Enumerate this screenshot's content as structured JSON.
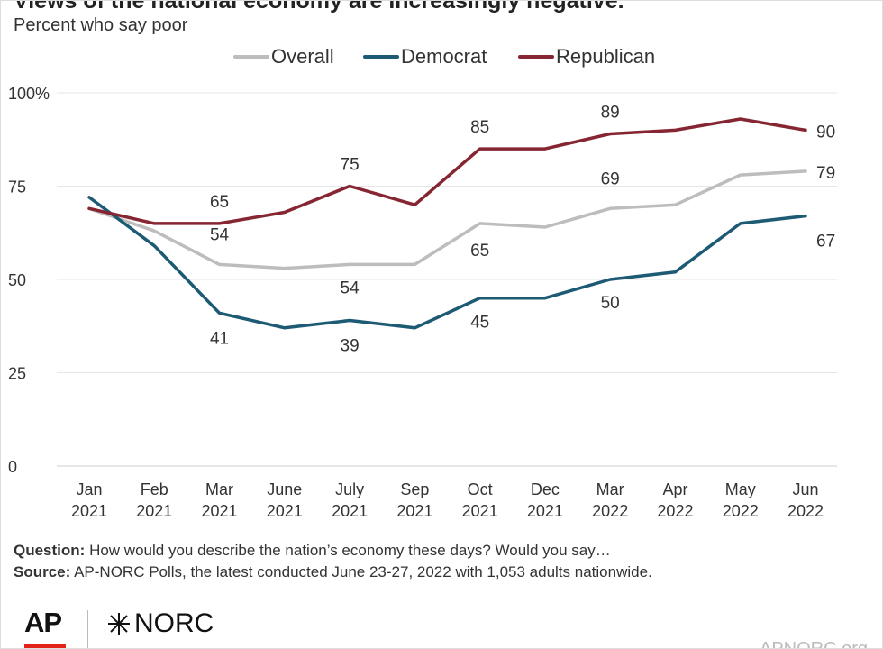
{
  "header": {
    "title": "Views of the national economy are increasingly negative.",
    "subtitle": "Percent who say poor"
  },
  "chart_data": {
    "type": "line",
    "title": "Views of the national economy are increasingly negative.",
    "subtitle": "Percent who say poor",
    "categories": [
      "Jan 2021",
      "Feb 2021",
      "Mar 2021",
      "June 2021",
      "July 2021",
      "Sep 2021",
      "Oct 2021",
      "Dec 2021",
      "Mar 2022",
      "Apr 2022",
      "May 2022",
      "Jun 2022"
    ],
    "category_lines": [
      [
        "Jan",
        "2021"
      ],
      [
        "Feb",
        "2021"
      ],
      [
        "Mar",
        "2021"
      ],
      [
        "June",
        "2021"
      ],
      [
        "July",
        "2021"
      ],
      [
        "Sep",
        "2021"
      ],
      [
        "Oct",
        "2021"
      ],
      [
        "Dec",
        "2021"
      ],
      [
        "Mar",
        "2022"
      ],
      [
        "Apr",
        "2022"
      ],
      [
        "May",
        "2022"
      ],
      [
        "Jun",
        "2022"
      ]
    ],
    "ylim": [
      0,
      100
    ],
    "yticks": [
      0,
      25,
      50,
      75,
      100
    ],
    "ytick_labels": [
      "0",
      "25",
      "50",
      "75",
      "100%"
    ],
    "grid": true,
    "legend_position": "top-center",
    "series": [
      {
        "name": "Overall",
        "color": "#bdbdbd",
        "values": [
          69,
          63,
          54,
          53,
          54,
          54,
          65,
          64,
          69,
          70,
          78,
          79
        ]
      },
      {
        "name": "Democrat",
        "color": "#1d5a73",
        "values": [
          72,
          59,
          41,
          37,
          39,
          37,
          45,
          45,
          50,
          52,
          65,
          67
        ]
      },
      {
        "name": "Republican",
        "color": "#862633",
        "values": [
          69,
          65,
          65,
          68,
          75,
          70,
          85,
          85,
          89,
          90,
          93,
          90
        ]
      }
    ],
    "annotations": [
      {
        "series": "Republican",
        "index": 2,
        "text": "65"
      },
      {
        "series": "Republican",
        "index": 4,
        "text": "75"
      },
      {
        "series": "Republican",
        "index": 6,
        "text": "85"
      },
      {
        "series": "Republican",
        "index": 8,
        "text": "89"
      },
      {
        "series": "Republican",
        "index": 11,
        "text": "90"
      },
      {
        "series": "Overall",
        "index": 2,
        "text": "54"
      },
      {
        "series": "Overall",
        "index": 4,
        "text": "54"
      },
      {
        "series": "Overall",
        "index": 6,
        "text": "65"
      },
      {
        "series": "Overall",
        "index": 8,
        "text": "69"
      },
      {
        "series": "Overall",
        "index": 11,
        "text": "79"
      },
      {
        "series": "Democrat",
        "index": 2,
        "text": "41"
      },
      {
        "series": "Democrat",
        "index": 4,
        "text": "39"
      },
      {
        "series": "Democrat",
        "index": 6,
        "text": "45"
      },
      {
        "series": "Democrat",
        "index": 8,
        "text": "50"
      },
      {
        "series": "Democrat",
        "index": 11,
        "text": "67"
      }
    ]
  },
  "footer": {
    "question_label": "Question:",
    "question_text": "How would you describe the nation’s economy these days? Would you say…",
    "source_label": "Source:",
    "source_text": "AP-NORC Polls, the latest conducted June 23-27, 2022 with 1,053 adults nationwide.",
    "logo_ap": "AP",
    "logo_norc": "NORC",
    "site": "APNORC.org"
  }
}
